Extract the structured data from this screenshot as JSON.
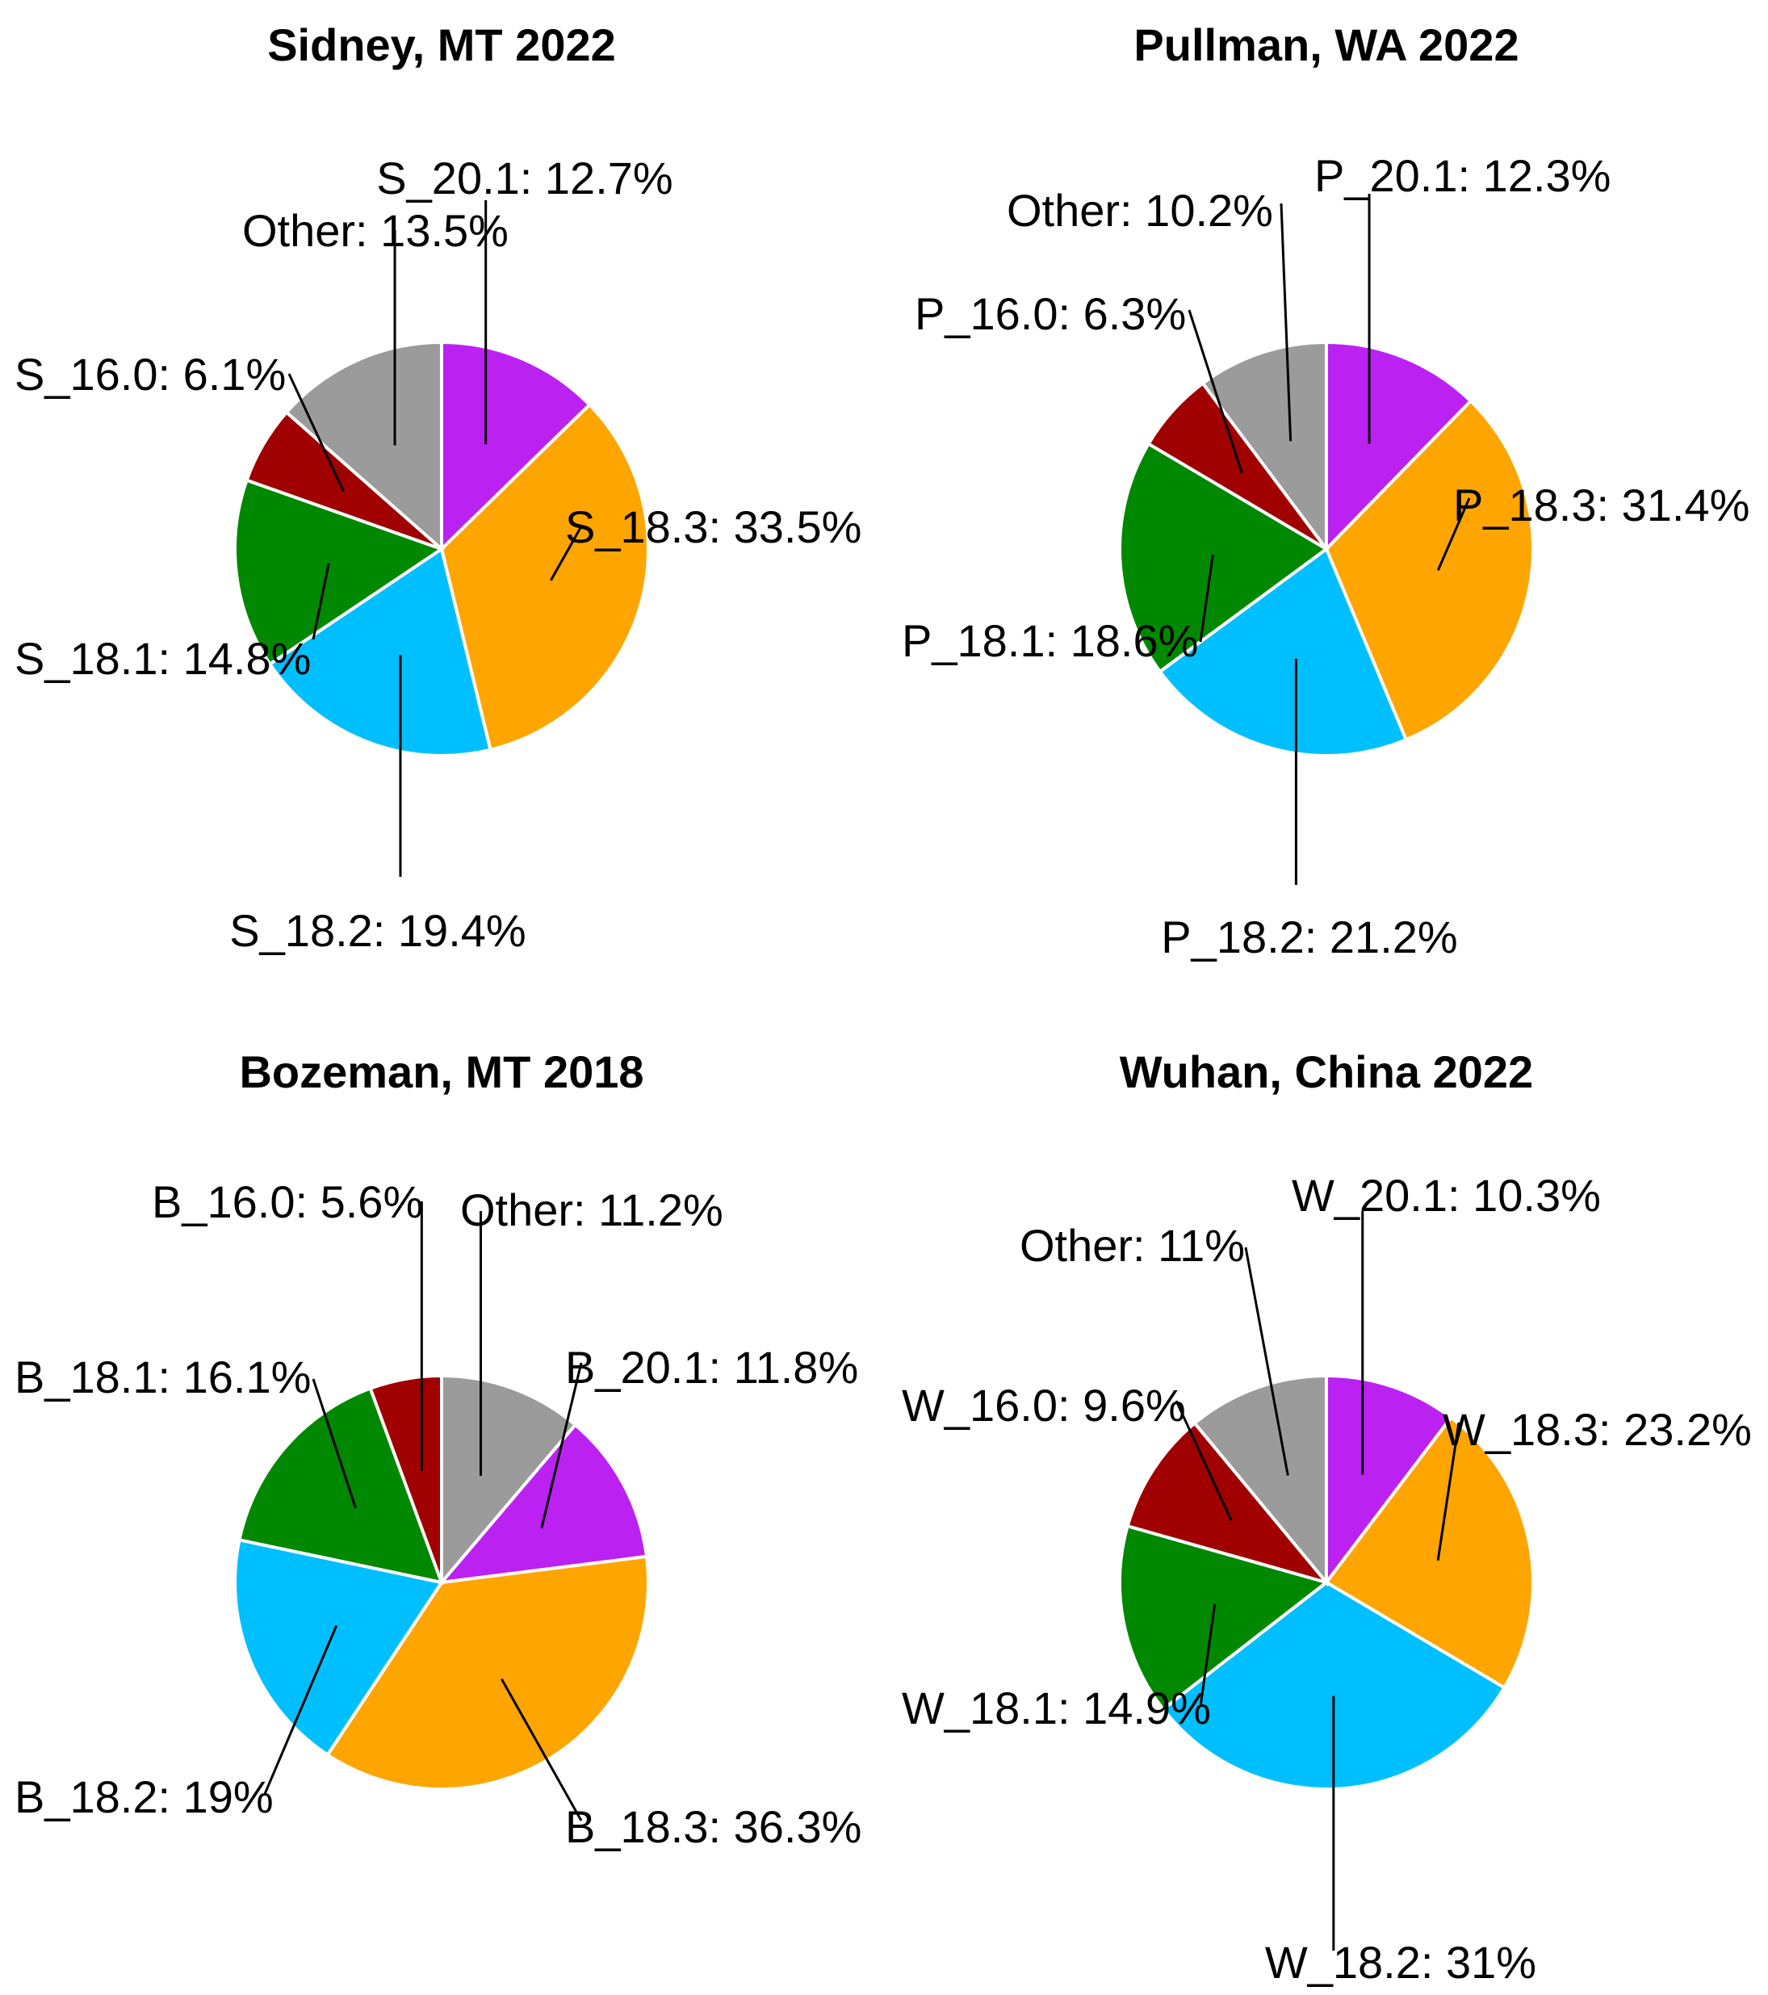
{
  "colors": {
    "purple": "#BB22F2",
    "orange": "#FFA500",
    "blue": "#00BFFF",
    "green": "#008800",
    "darkred": "#A00000",
    "gray": "#9B9B9B"
  },
  "chart_data": [
    {
      "type": "pie",
      "title": "Sidney, MT 2022",
      "slices": [
        {
          "name": "S_20.1",
          "value": 12.7,
          "label": "S_20.1: 12.7%",
          "color": "#BB22F2"
        },
        {
          "name": "S_18.3",
          "value": 33.5,
          "label": "S_18.3: 33.5%",
          "color": "#FFA500"
        },
        {
          "name": "S_18.2",
          "value": 19.4,
          "label": "S_18.2: 19.4%",
          "color": "#00BFFF"
        },
        {
          "name": "S_18.1",
          "value": 14.8,
          "label": "S_18.1: 14.8%",
          "color": "#008800"
        },
        {
          "name": "S_16.0",
          "value": 6.1,
          "label": "S_16.0: 6.1%",
          "color": "#A00000"
        },
        {
          "name": "Other",
          "value": 13.5,
          "label": "Other: 13.5%",
          "color": "#9B9B9B"
        }
      ]
    },
    {
      "type": "pie",
      "title": "Pullman, WA 2022",
      "slices": [
        {
          "name": "P_20.1",
          "value": 12.3,
          "label": "P_20.1: 12.3%",
          "color": "#BB22F2"
        },
        {
          "name": "P_18.3",
          "value": 31.4,
          "label": "P_18.3: 31.4%",
          "color": "#FFA500"
        },
        {
          "name": "P_18.2",
          "value": 21.2,
          "label": "P_18.2: 21.2%",
          "color": "#00BFFF"
        },
        {
          "name": "P_18.1",
          "value": 18.6,
          "label": "P_18.1: 18.6%",
          "color": "#008800"
        },
        {
          "name": "P_16.0",
          "value": 6.3,
          "label": "P_16.0: 6.3%",
          "color": "#A00000"
        },
        {
          "name": "Other",
          "value": 10.2,
          "label": "Other: 10.2%",
          "color": "#9B9B9B"
        }
      ]
    },
    {
      "type": "pie",
      "title": "Bozeman, MT 2018",
      "slices": [
        {
          "name": "Other",
          "value": 11.2,
          "label": "Other: 11.2%",
          "color": "#9B9B9B"
        },
        {
          "name": "B_20.1",
          "value": 11.8,
          "label": "B_20.1: 11.8%",
          "color": "#BB22F2"
        },
        {
          "name": "B_18.3",
          "value": 36.3,
          "label": "B_18.3: 36.3%",
          "color": "#FFA500"
        },
        {
          "name": "B_18.2",
          "value": 19,
          "label": "B_18.2: 19%",
          "color": "#00BFFF"
        },
        {
          "name": "B_18.1",
          "value": 16.1,
          "label": "B_18.1: 16.1%",
          "color": "#008800"
        },
        {
          "name": "B_16.0",
          "value": 5.6,
          "label": "B_16.0: 5.6%",
          "color": "#A00000"
        }
      ]
    },
    {
      "type": "pie",
      "title": "Wuhan, China 2022",
      "slices": [
        {
          "name": "W_20.1",
          "value": 10.3,
          "label": "W_20.1: 10.3%",
          "color": "#BB22F2"
        },
        {
          "name": "W_18.3",
          "value": 23.2,
          "label": "W_18.3: 23.2%",
          "color": "#FFA500"
        },
        {
          "name": "W_18.2",
          "value": 31,
          "label": "W_18.2: 31%",
          "color": "#00BFFF"
        },
        {
          "name": "W_18.1",
          "value": 14.9,
          "label": "W_18.1: 14.9%",
          "color": "#008800"
        },
        {
          "name": "W_16.0",
          "value": 9.6,
          "label": "W_16.0: 9.6%",
          "color": "#A00000"
        },
        {
          "name": "Other",
          "value": 11,
          "label": "Other: 11%",
          "color": "#9B9B9B"
        }
      ]
    }
  ]
}
